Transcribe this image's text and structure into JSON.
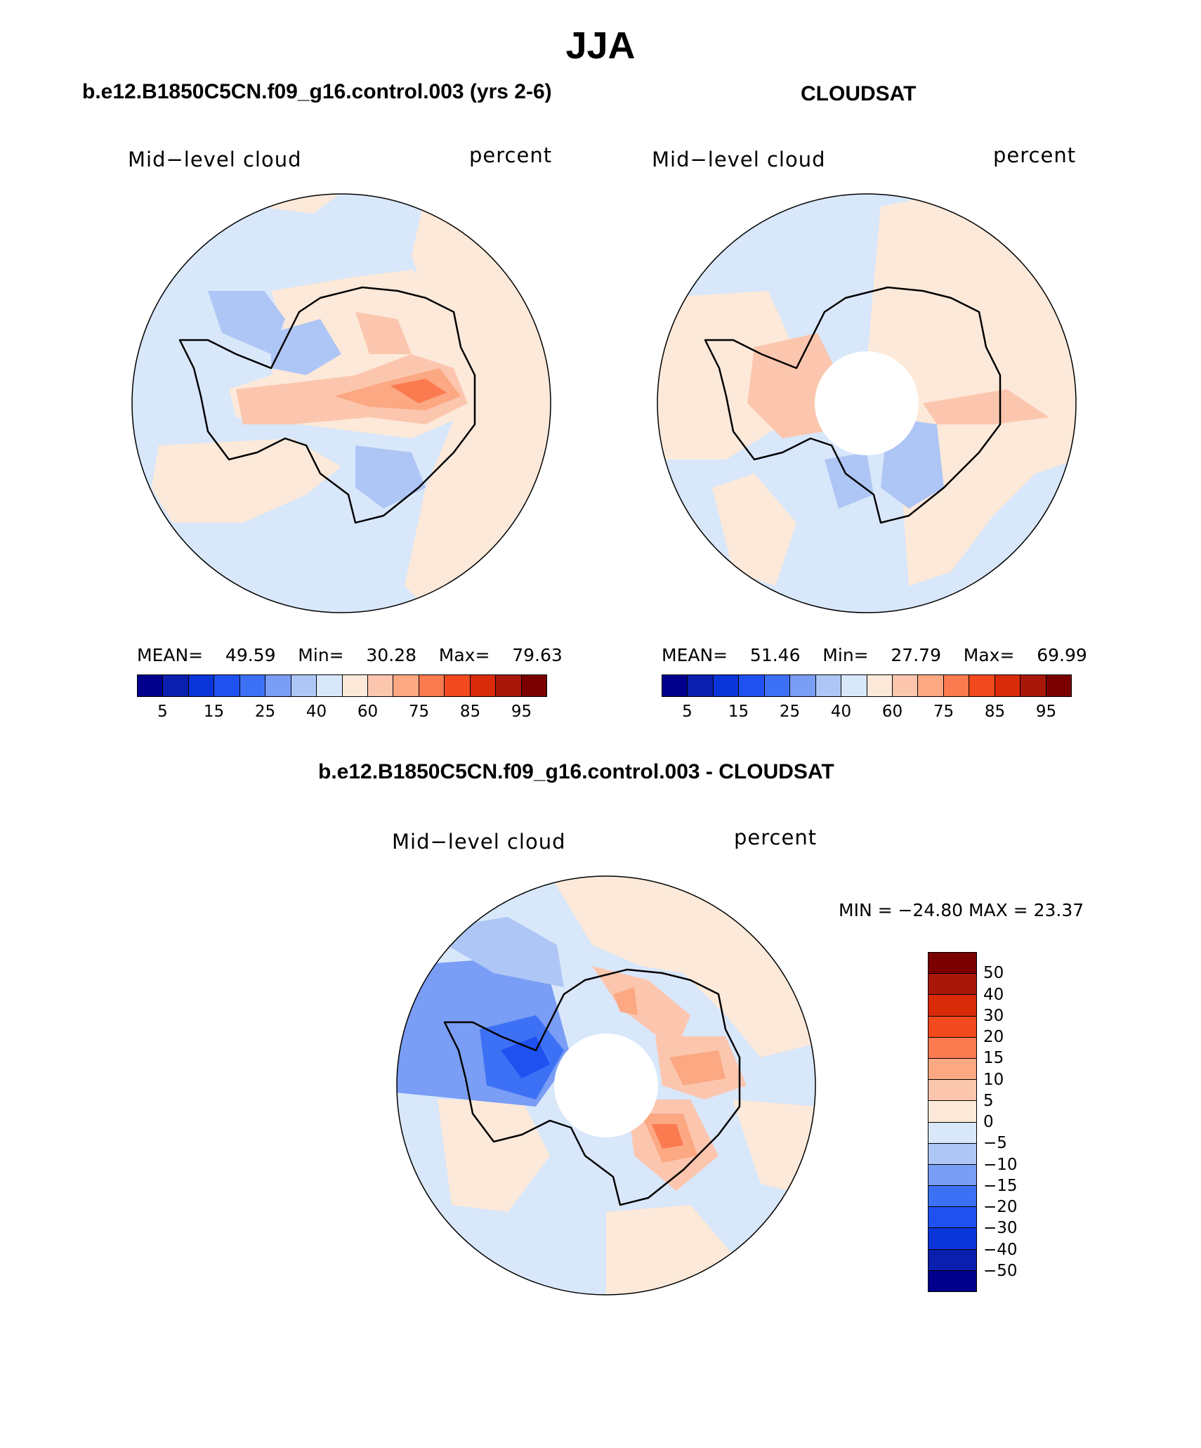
{
  "title": "JJA",
  "panels": [
    {
      "title": "b.e12.B1850C5CN.f09_g16.control.003 (yrs 2-6)",
      "label_left": "Mid−level cloud",
      "label_right": "percent",
      "stats": {
        "mean_label": "MEAN=",
        "mean": "49.59",
        "min_label": "Min=",
        "min": "30.28",
        "max_label": "Max=",
        "max": "79.63"
      }
    },
    {
      "title": "CLOUDSAT",
      "label_left": "Mid−level cloud",
      "label_right": "percent",
      "stats": {
        "mean_label": "MEAN=",
        "mean": "51.46",
        "min_label": "Min=",
        "min": "27.79",
        "max_label": "Max=",
        "max": "69.99"
      }
    }
  ],
  "colorbar_ticks": [
    "5",
    "15",
    "25",
    "40",
    "60",
    "75",
    "85",
    "95"
  ],
  "colorbar_colors": [
    "#00008c",
    "#0a1fae",
    "#0a35d8",
    "#1f51f0",
    "#3d71f5",
    "#7a9df5",
    "#aec6f5",
    "#d8e7fa",
    "#fde9d9",
    "#fcc6ae",
    "#fba883",
    "#fb7a4f",
    "#f24a1e",
    "#d92a0a",
    "#a8180a",
    "#7a0000"
  ],
  "diff_panel": {
    "title": "b.e12.B1850C5CN.f09_g16.control.003 - CLOUDSAT",
    "label_left": "Mid−level cloud",
    "label_right": "percent",
    "minmax": "MIN = −24.80 MAX =   23.37",
    "colorbar_ticks": [
      "50",
      "40",
      "30",
      "20",
      "15",
      "10",
      "5",
      "0",
      "−5",
      "−10",
      "−15",
      "−20",
      "−30",
      "−40",
      "−50"
    ],
    "colorbar_colors": [
      "#7a0000",
      "#a8180a",
      "#d92a0a",
      "#f24a1e",
      "#fb7a4f",
      "#fba883",
      "#fcc6ae",
      "#fde9d9",
      "#d8e7fa",
      "#aec6f5",
      "#7a9df5",
      "#3d71f5",
      "#1f51f0",
      "#0a35d8",
      "#0a1fae",
      "#00008c"
    ]
  },
  "field_colors": {
    "pale_blue": "#d8e7fa",
    "light_blue": "#aec6f5",
    "mid_blue": "#7a9df5",
    "blue": "#3d71f5",
    "pale_orange": "#fde9d9",
    "light_orange": "#fcc6ae",
    "orange": "#fba883",
    "red_orange": "#fb7a4f",
    "red": "#f24a1e"
  }
}
